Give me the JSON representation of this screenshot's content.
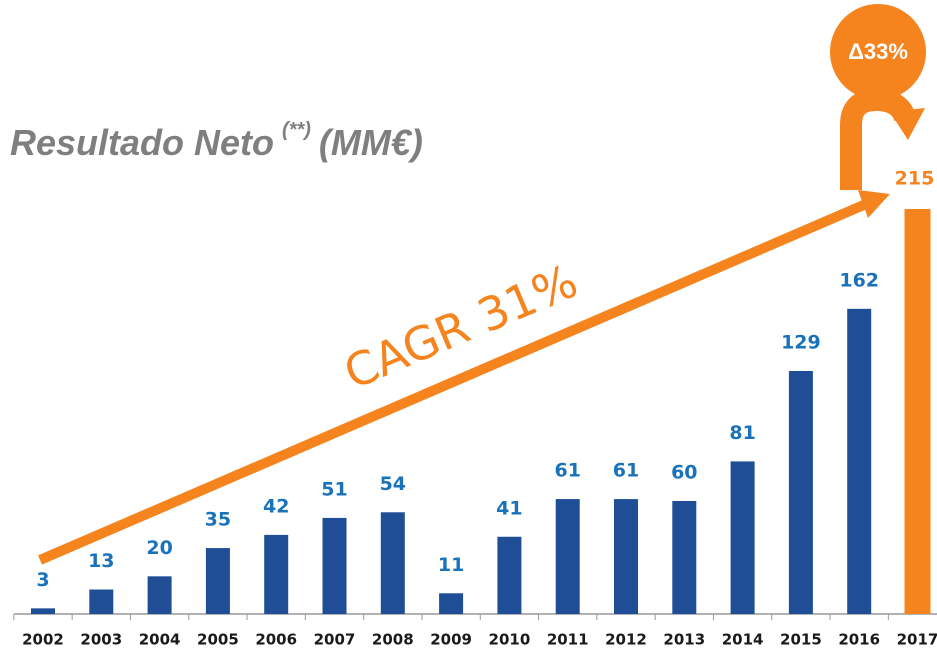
{
  "chart_data": {
    "type": "bar",
    "title": "Resultado Neto",
    "title_superscript": "(**)",
    "title_unit": "(MM€)",
    "categories": [
      "2002",
      "2003",
      "2004",
      "2005",
      "2006",
      "2007",
      "2008",
      "2009",
      "2010",
      "2011",
      "2012",
      "2013",
      "2014",
      "2015",
      "2016",
      "2017"
    ],
    "values": [
      3,
      13,
      20,
      35,
      42,
      51,
      54,
      11,
      41,
      61,
      61,
      60,
      81,
      129,
      162,
      215
    ],
    "colors": [
      "#1f4e96",
      "#1f4e96",
      "#1f4e96",
      "#1f4e96",
      "#1f4e96",
      "#1f4e96",
      "#1f4e96",
      "#1f4e96",
      "#1f4e96",
      "#1f4e96",
      "#1f4e96",
      "#1f4e96",
      "#1f4e96",
      "#1f4e96",
      "#1f4e96",
      "#f5841f"
    ],
    "label_colors": [
      "#1a72bb",
      "#1a72bb",
      "#1a72bb",
      "#1a72bb",
      "#1a72bb",
      "#1a72bb",
      "#1a72bb",
      "#1a72bb",
      "#1a72bb",
      "#1a72bb",
      "#1a72bb",
      "#1a72bb",
      "#1a72bb",
      "#1a72bb",
      "#1a72bb",
      "#f5841f"
    ],
    "annotations": {
      "cagr": "CAGR 31%",
      "delta": "Δ33%"
    }
  }
}
